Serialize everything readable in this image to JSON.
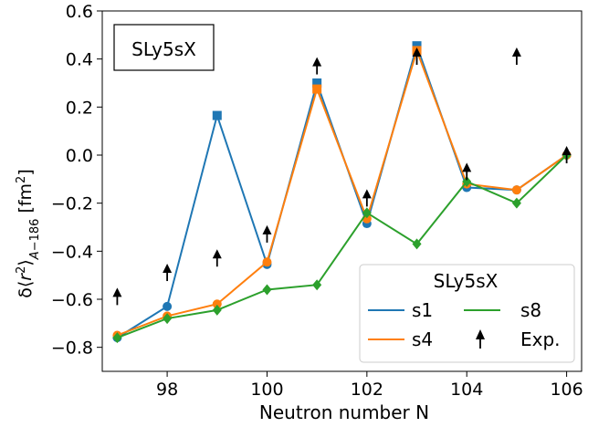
{
  "chart_data": {
    "type": "line",
    "xlabel": "Neutron number N",
    "ylabel": "δ⟨r²⟩A−186 [fm²]",
    "xlim": [
      96.7,
      106.3
    ],
    "ylim": [
      -0.9,
      0.6
    ],
    "xticks": [
      98,
      100,
      102,
      104,
      106
    ],
    "yticks": [
      -0.8,
      -0.6,
      -0.4,
      -0.2,
      0.0,
      0.2,
      0.4,
      0.6
    ],
    "annotation": "SLy5sX",
    "legend": {
      "title": "SLy5sX",
      "placement": "lower-right"
    },
    "series": [
      {
        "name": "s1",
        "color": "#1f77b4",
        "x": [
          97,
          98,
          99,
          100,
          101,
          102,
          103,
          104,
          105,
          106
        ],
        "y": [
          -0.76,
          -0.63,
          0.165,
          -0.455,
          0.3,
          -0.285,
          0.455,
          -0.135,
          -0.145,
          0.0
        ],
        "markers": [
          "circle",
          "circle",
          "square",
          "circle",
          "square",
          "circle",
          "square",
          "circle",
          "circle",
          "circle"
        ]
      },
      {
        "name": "s4",
        "color": "#ff7f0e",
        "x": [
          97,
          98,
          99,
          100,
          101,
          102,
          103,
          104,
          105,
          106
        ],
        "y": [
          -0.75,
          -0.67,
          -0.62,
          -0.445,
          0.275,
          -0.265,
          0.435,
          -0.12,
          -0.145,
          0.0
        ],
        "markers": [
          "circle",
          "circle",
          "circle",
          "circle",
          "square",
          "circle",
          "square",
          "circle",
          "circle",
          "circle"
        ]
      },
      {
        "name": "s8",
        "color": "#2ca02c",
        "x": [
          97,
          98,
          99,
          100,
          101,
          102,
          103,
          104,
          105,
          106
        ],
        "y": [
          -0.76,
          -0.68,
          -0.645,
          -0.56,
          -0.54,
          -0.24,
          -0.37,
          -0.11,
          -0.2,
          0.0
        ],
        "markers": [
          "diamond",
          "diamond",
          "diamond",
          "diamond",
          "diamond",
          "diamond",
          "diamond",
          "diamond",
          "diamond",
          "diamond"
        ]
      },
      {
        "name": "Exp.",
        "color": "#000000",
        "x": [
          97,
          98,
          99,
          100,
          101,
          102,
          103,
          104,
          105,
          106
        ],
        "y": [
          -0.59,
          -0.49,
          -0.43,
          -0.33,
          0.37,
          -0.18,
          0.41,
          -0.07,
          0.41,
          0.0
        ],
        "markers": [
          "arrow-up",
          "arrow-up",
          "arrow-up",
          "arrow-up",
          "arrow-up",
          "arrow-up",
          "arrow-up",
          "arrow-up",
          "arrow-up",
          "arrow-up"
        ]
      }
    ]
  }
}
